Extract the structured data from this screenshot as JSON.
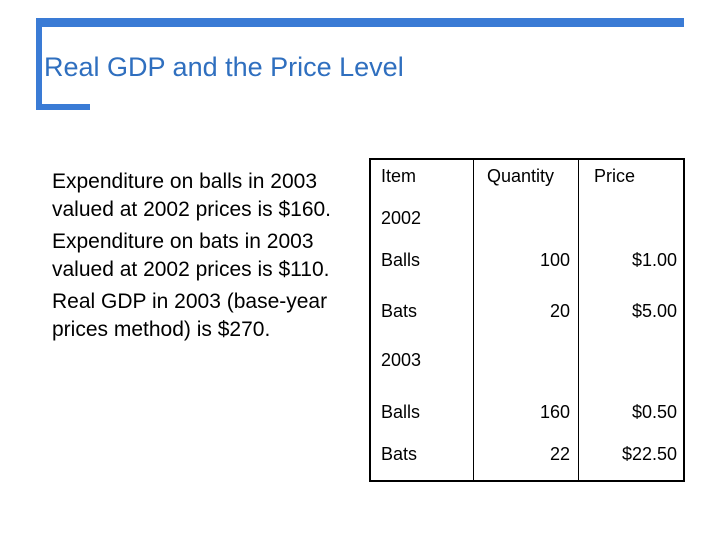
{
  "title": "Real GDP and the Price Level",
  "paragraphs": [
    "Expenditure on balls in 2003 valued at 2002 prices is $160.",
    "Expenditure on bats in 2003 valued at 2002 prices is $110.",
    "Real GDP in 2003 (base-year prices method) is $270."
  ],
  "table": {
    "headers": [
      "Item",
      "Quantity",
      "Price"
    ],
    "sections": [
      {
        "year": "2002",
        "rows": [
          {
            "item": "Balls",
            "quantity": "100",
            "price": "$1.00"
          },
          {
            "item": "Bats",
            "quantity": "20",
            "price": "$5.00"
          }
        ]
      },
      {
        "year": "2003",
        "rows": [
          {
            "item": "Balls",
            "quantity": "160",
            "price": "$0.50"
          },
          {
            "item": "Bats",
            "quantity": "22",
            "price": "$22.50"
          }
        ]
      }
    ]
  }
}
